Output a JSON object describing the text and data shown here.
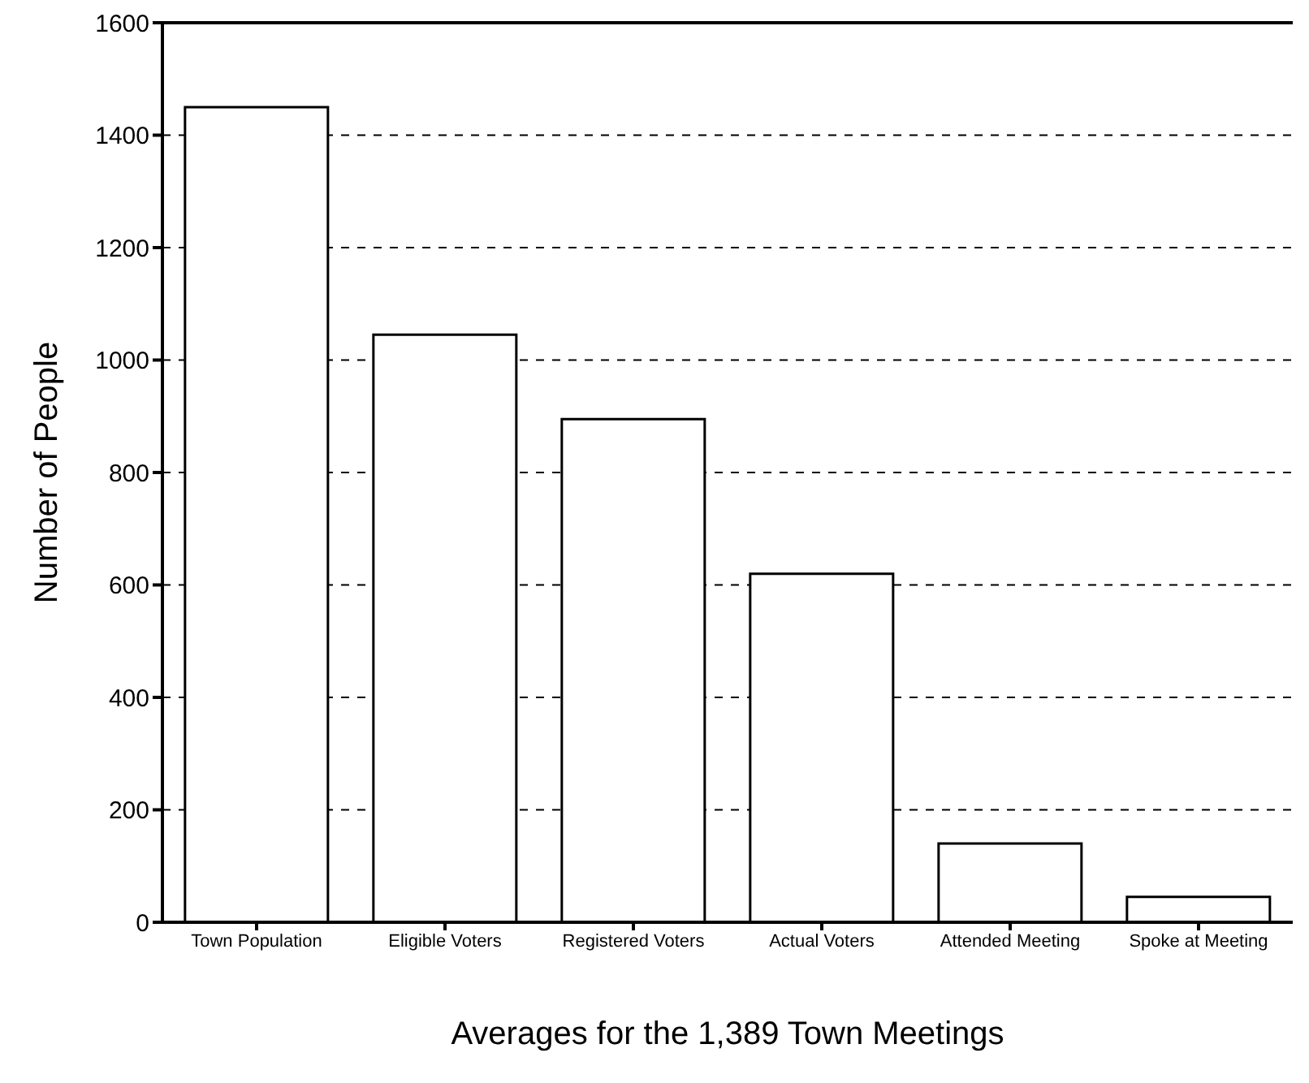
{
  "chart_data": {
    "type": "bar",
    "xlabel": "Averages for the 1,389 Town Meetings",
    "ylabel": "Number of People",
    "categories": [
      "Town Population",
      "Eligible Voters",
      "Registered Voters",
      "Actual Voters",
      "Attended Meeting",
      "Spoke at Meeting"
    ],
    "values": [
      1450,
      1045,
      895,
      620,
      140,
      45
    ],
    "color": "#ffffff",
    "ylim": [
      0,
      1600
    ],
    "yticks": [
      0,
      200,
      400,
      600,
      800,
      1000,
      1200,
      1400,
      1600
    ],
    "grid": "y"
  }
}
